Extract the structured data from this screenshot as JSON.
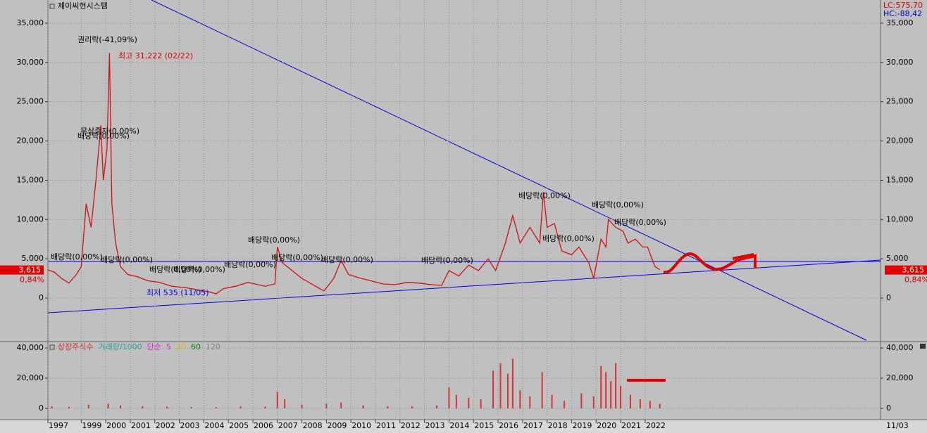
{
  "chart_data": [
    {
      "type": "line",
      "title": "제이씨현시스템",
      "x": [
        1997.64,
        1997.9,
        1998.2,
        1998.5,
        1998.8,
        1999.0,
        1999.2,
        1999.4,
        1999.6,
        1999.8,
        1999.9,
        2000.05,
        2000.15,
        2000.25,
        2000.4,
        2000.6,
        2000.9,
        2001.3,
        2001.7,
        2002.2,
        2002.7,
        2003.3,
        2003.8,
        2004.2,
        2004.5,
        2004.8,
        2005.3,
        2005.8,
        2006.5,
        2006.9,
        2007.0,
        2007.2,
        2007.6,
        2008.0,
        2008.5,
        2008.9,
        2009.3,
        2009.6,
        2009.9,
        2010.3,
        2010.8,
        2011.3,
        2011.8,
        2012.3,
        2012.8,
        2013.3,
        2013.7,
        2014.0,
        2014.4,
        2014.8,
        2015.2,
        2015.6,
        2015.9,
        2016.3,
        2016.6,
        2016.9,
        2017.3,
        2017.7,
        2017.85,
        2018.0,
        2018.3,
        2018.6,
        2019.0,
        2019.3,
        2019.7,
        2019.9,
        2020.2,
        2020.4,
        2020.5,
        2020.8,
        2021.1,
        2021.3,
        2021.6,
        2021.9,
        2022.1,
        2022.4,
        2022.6
      ],
      "series": [
        {
          "color": "#d01010",
          "values": [
            3600,
            3300,
            2500,
            1900,
            3000,
            4000,
            12000,
            9000,
            15000,
            22000,
            15000,
            19000,
            31222,
            12000,
            7000,
            4000,
            3000,
            2700,
            2200,
            2000,
            1500,
            1300,
            1000,
            800,
            535,
            1200,
            1500,
            2000,
            1500,
            1800,
            6500,
            4500,
            3500,
            2500,
            1600,
            900,
            2500,
            4800,
            3000,
            2600,
            2200,
            1800,
            1700,
            2000,
            1900,
            1700,
            1600,
            3500,
            2800,
            4200,
            3500,
            5000,
            3500,
            7000,
            10500,
            7000,
            9000,
            7000,
            13500,
            9000,
            9500,
            6000,
            5500,
            6500,
            4500,
            2500,
            7500,
            6500,
            10000,
            9000,
            8500,
            7000,
            7500,
            6500,
            6500,
            4000,
            3615
          ]
        }
      ],
      "xlim": [
        1997.64,
        2031.6
      ],
      "xticks": [
        {
          "value": 1997.64,
          "label": "1997"
        },
        1999,
        2000,
        2001,
        2002,
        2003,
        2004,
        2005,
        2006,
        2007,
        2008,
        2009,
        2010,
        2011,
        2012,
        2013,
        2014,
        2015,
        2016,
        2017,
        2018,
        2019,
        2020,
        2021,
        2022
      ],
      "x_end_label": "11/03",
      "ylim": [
        -5460,
        37950
      ],
      "yticks": [
        0,
        {
          "value": 5000,
          "label": "5,000"
        },
        {
          "value": 10000,
          "label": "10,000"
        },
        {
          "value": 15000,
          "label": "15,000"
        },
        {
          "value": 20000,
          "label": "20,000"
        },
        {
          "value": 25000,
          "label": "25,000"
        },
        {
          "value": 30000,
          "label": "30,000"
        },
        {
          "value": 35000,
          "label": "35,000"
        }
      ],
      "last_price": {
        "value": 3615,
        "label": "3,615"
      },
      "change_label": "0,84%",
      "lc_label": "LC:575,70",
      "hc_label": "HC:-88,42",
      "annotations": [
        "권리락(-41,09%)",
        "최고 31,222 (02/22)",
        "최저 535 (11/05)",
        "배당락(0,00%)",
        "무상증자(0,00%)",
        "배당락(0,00%)",
        "배당락(0,00%)",
        "배당락(0,00%)",
        "배당락(0,00%)",
        "배당락(0,00%)",
        "배당락(0,00%)",
        "배당락(0,00%)",
        "배당락(0,00%)",
        "배당락(0,00%)",
        "배당락(0,00%)",
        "배당락(0,00%)",
        "배당락(0,00%)",
        "배당락(0,00%)"
      ]
    },
    {
      "type": "bar",
      "legend": [
        {
          "name": "상장주식수",
          "color": "#e02020"
        },
        {
          "name": "거래량/1000",
          "color": "#20a0a0"
        },
        {
          "name": "단순",
          "color": "#e020e0"
        },
        {
          "name": "5",
          "color": "#e020e0"
        },
        {
          "name": "20",
          "color": "#e0c000"
        },
        {
          "name": "60",
          "color": "#008000"
        },
        {
          "name": "120",
          "color": "#808080"
        }
      ],
      "x": [
        1997.8,
        1998.5,
        1999.3,
        2000.1,
        2000.6,
        2001.5,
        2002.5,
        2003.5,
        2004.5,
        2005.5,
        2006.5,
        2007.0,
        2007.3,
        2008.0,
        2009.0,
        2009.6,
        2010.5,
        2011.5,
        2012.5,
        2013.5,
        2014.0,
        2014.3,
        2014.8,
        2015.3,
        2015.8,
        2016.1,
        2016.4,
        2016.6,
        2016.9,
        2017.3,
        2017.8,
        2018.2,
        2018.7,
        2019.4,
        2019.9,
        2020.2,
        2020.4,
        2020.6,
        2020.8,
        2021.0,
        2021.4,
        2021.8,
        2022.2,
        2022.6
      ],
      "series": [
        {
          "color": "#e03030",
          "values": [
            1500,
            1000,
            2500,
            3000,
            2000,
            1500,
            1200,
            1000,
            800,
            1500,
            1200,
            11000,
            6000,
            2500,
            3000,
            4000,
            2000,
            1500,
            1500,
            2000,
            14000,
            9000,
            7000,
            6000,
            25000,
            30000,
            23000,
            33000,
            12000,
            8000,
            24000,
            9000,
            5000,
            10000,
            8000,
            28000,
            24000,
            18000,
            30000,
            15000,
            9000,
            6000,
            5000,
            3000
          ]
        }
      ],
      "ylim": [
        -7440,
        43720
      ],
      "yticks": [
        0,
        {
          "value": 20000,
          "label": "20,000"
        },
        {
          "value": 40000,
          "label": "40,000"
        }
      ]
    }
  ]
}
